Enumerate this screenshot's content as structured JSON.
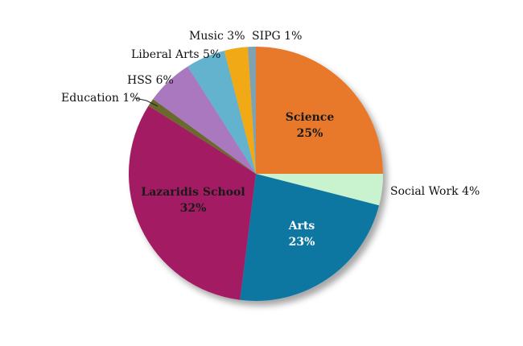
{
  "chart_data": {
    "type": "pie",
    "title": "",
    "slices": [
      {
        "label": "Science",
        "value_text": "25%",
        "value": 25,
        "color": "#e8792a"
      },
      {
        "label": "Social Work",
        "value_text": "4%",
        "value": 4,
        "color": "#c9f2cf"
      },
      {
        "label": "Arts",
        "value_text": "23%",
        "value": 23,
        "color": "#0e77a1"
      },
      {
        "label": "Lazaridis School",
        "value_text": "32%",
        "value": 32,
        "color": "#a31f64"
      },
      {
        "label": "Education",
        "value_text": "1%",
        "value": 1,
        "color": "#6a6a2f"
      },
      {
        "label": "HSS",
        "value_text": "6%",
        "value": 6,
        "color": "#aa78be"
      },
      {
        "label": "Liberal Arts",
        "value_text": "5%",
        "value": 5,
        "color": "#63b3cf"
      },
      {
        "label": "Music",
        "value_text": "3%",
        "value": 3,
        "color": "#f2a912"
      },
      {
        "label": "SIPG",
        "value_text": "1%",
        "value": 1,
        "color": "#7fa2b3"
      }
    ],
    "label_colors": {
      "inside_dark": "#1a1a1a",
      "inside_light": "#ffffff"
    }
  }
}
